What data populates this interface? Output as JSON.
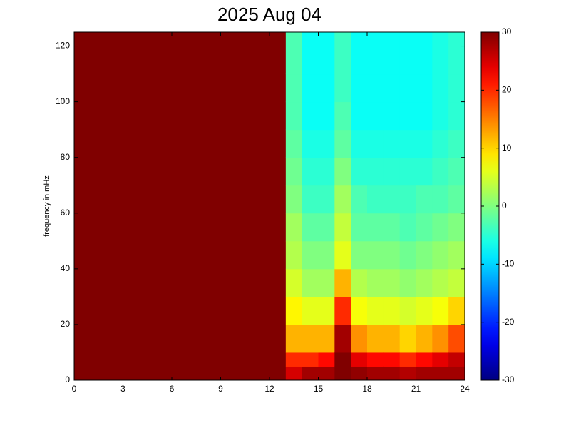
{
  "chart_data": {
    "type": "heatmap",
    "title": "2025 Aug 04",
    "y_label": "frequency in mHz",
    "colormap": "jet",
    "xbins": [
      0,
      1,
      2,
      3,
      4,
      5,
      6,
      7,
      8,
      9,
      10,
      11,
      12,
      13,
      14,
      15,
      16,
      17,
      18,
      19,
      20,
      21,
      22,
      23,
      24
    ],
    "ybins": [
      0,
      5,
      10,
      20,
      30,
      40,
      50,
      60,
      70,
      80,
      90,
      100,
      110,
      125
    ],
    "z": [
      [
        30,
        30,
        30,
        30,
        30,
        30,
        30,
        30,
        30,
        30,
        30,
        30,
        30
      ],
      [
        30,
        30,
        30,
        30,
        30,
        30,
        30,
        30,
        30,
        30,
        30,
        30,
        30
      ],
      [
        30,
        30,
        30,
        30,
        30,
        30,
        30,
        30,
        30,
        30,
        30,
        30,
        30
      ],
      [
        30,
        30,
        30,
        30,
        30,
        30,
        30,
        30,
        30,
        30,
        30,
        30,
        30
      ],
      [
        30,
        30,
        30,
        30,
        30,
        30,
        30,
        30,
        30,
        30,
        30,
        30,
        30
      ],
      [
        30,
        30,
        30,
        30,
        30,
        30,
        30,
        30,
        30,
        30,
        30,
        30,
        30
      ],
      [
        30,
        30,
        30,
        30,
        30,
        30,
        30,
        30,
        30,
        30,
        30,
        30,
        30
      ],
      [
        30,
        30,
        30,
        30,
        30,
        30,
        30,
        30,
        30,
        30,
        30,
        30,
        30
      ],
      [
        30,
        30,
        30,
        30,
        30,
        30,
        30,
        30,
        30,
        30,
        30,
        30,
        30
      ],
      [
        30,
        30,
        30,
        30,
        30,
        30,
        30,
        30,
        30,
        30,
        30,
        30,
        30
      ],
      [
        30,
        30,
        30,
        30,
        30,
        30,
        30,
        30,
        30,
        30,
        30,
        30,
        30
      ],
      [
        30,
        30,
        30,
        30,
        30,
        30,
        30,
        30,
        30,
        30,
        30,
        30,
        30
      ],
      [
        30,
        30,
        30,
        30,
        30,
        30,
        30,
        30,
        30,
        30,
        30,
        30,
        30
      ],
      [
        25,
        20,
        12,
        8,
        5,
        3,
        2,
        0,
        -1,
        -2,
        -3,
        -3,
        -3
      ],
      [
        28,
        20,
        12,
        6,
        2,
        0,
        -2,
        -4,
        -5,
        -6,
        -7,
        -7,
        -7
      ],
      [
        28,
        22,
        12,
        6,
        2,
        0,
        -2,
        -4,
        -5,
        -6,
        -7,
        -7,
        -7
      ],
      [
        30,
        30,
        28,
        20,
        12,
        6,
        4,
        2,
        0,
        -2,
        -3,
        -4,
        -4
      ],
      [
        29,
        24,
        14,
        7,
        3,
        0,
        -2,
        -3,
        -5,
        -6,
        -7,
        -7,
        -7
      ],
      [
        28,
        22,
        12,
        6,
        2,
        0,
        -2,
        -4,
        -5,
        -6,
        -7,
        -7,
        -7
      ],
      [
        28,
        22,
        12,
        6,
        2,
        0,
        -2,
        -4,
        -5,
        -6,
        -7,
        -7,
        -7
      ],
      [
        27,
        20,
        10,
        5,
        1,
        -1,
        -3,
        -4,
        -5,
        -6,
        -7,
        -7,
        -7
      ],
      [
        28,
        22,
        12,
        6,
        2,
        0,
        -2,
        -3,
        -5,
        -6,
        -7,
        -7,
        -7
      ],
      [
        28,
        24,
        14,
        7,
        3,
        1,
        -1,
        -3,
        -4,
        -5,
        -6,
        -6,
        -6
      ],
      [
        28,
        26,
        18,
        10,
        4,
        2,
        0,
        -2,
        -3,
        -4,
        -5,
        -5,
        -5
      ]
    ],
    "xlim": [
      0,
      24
    ],
    "xticks": [
      0,
      3,
      6,
      9,
      12,
      15,
      18,
      21,
      24
    ],
    "ylim": [
      0,
      125
    ],
    "yticks": [
      0,
      20,
      40,
      60,
      80,
      100,
      120
    ],
    "clim": [
      -30,
      30
    ],
    "cticks": [
      -30,
      -20,
      -10,
      0,
      10,
      20,
      30
    ]
  }
}
